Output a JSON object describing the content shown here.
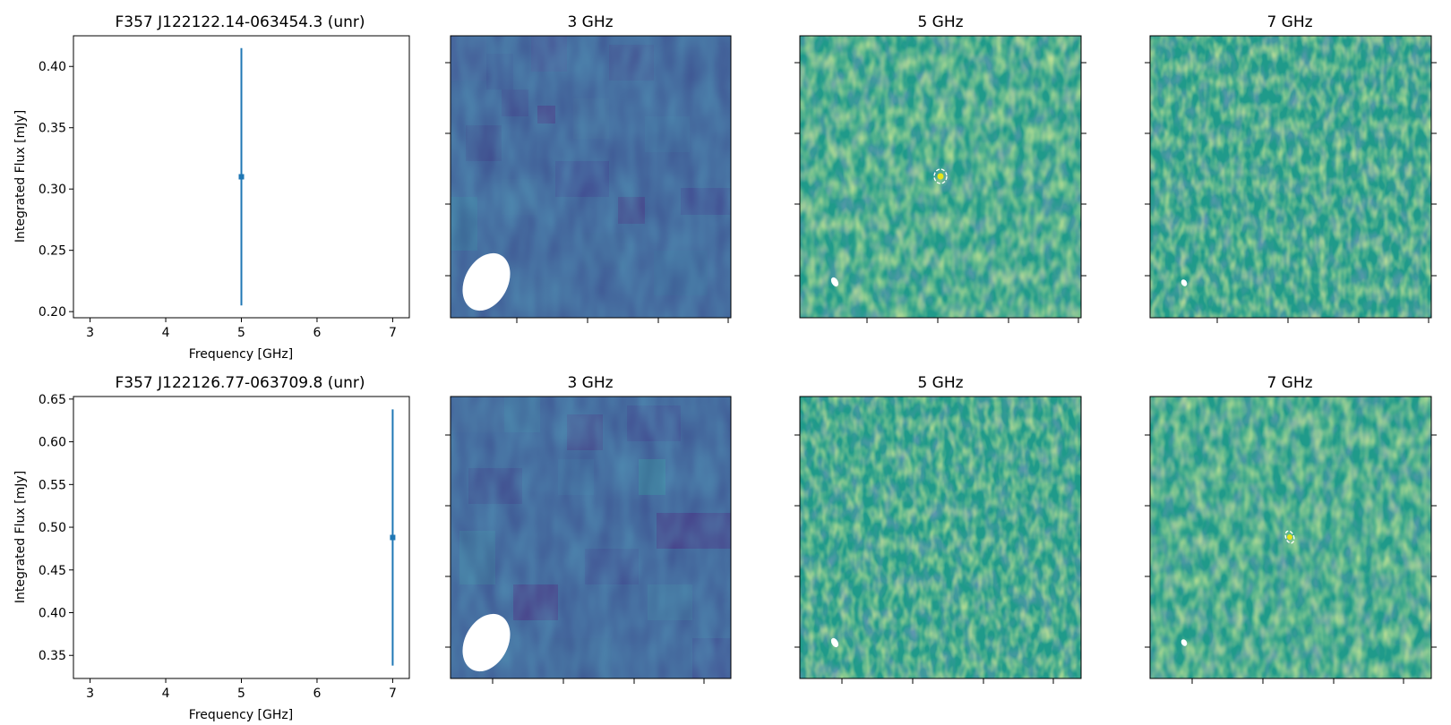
{
  "figure": {
    "rows": [
      {
        "sed": {
          "title": "F357 J122122.14-063454.3 (unr)",
          "xlabel": "Frequency [GHz]",
          "ylabel": "Integrated Flux [mJy]"
        },
        "panels": [
          {
            "title": "3 GHz"
          },
          {
            "title": "5 GHz"
          },
          {
            "title": "7 GHz"
          }
        ]
      },
      {
        "sed": {
          "title": "F357 J122126.77-063709.8 (unr)",
          "xlabel": "Frequency [GHz]",
          "ylabel": "Integrated Flux [mJy]"
        },
        "panels": [
          {
            "title": "3 GHz"
          },
          {
            "title": "5 GHz"
          },
          {
            "title": "7 GHz"
          }
        ]
      }
    ]
  },
  "chart_data": [
    {
      "type": "scatter",
      "title": "F357 J122122.14-063454.3 (unr)",
      "xlabel": "Frequency [GHz]",
      "ylabel": "Integrated Flux [mJy]",
      "xlim": [
        2.78,
        7.22
      ],
      "ylim": [
        0.195,
        0.425
      ],
      "xticks": [
        3,
        4,
        5,
        6,
        7
      ],
      "yticks": [
        0.2,
        0.25,
        0.3,
        0.35,
        0.4
      ],
      "ytick_labels": [
        "0.20",
        "0.25",
        "0.30",
        "0.35",
        "0.40"
      ],
      "points": [
        {
          "x": 5,
          "y": 0.31,
          "yerr_low": 0.205,
          "yerr_high": 0.415
        }
      ],
      "color": "#1f77b4"
    },
    {
      "type": "scatter",
      "title": "F357 J122126.77-063709.8 (unr)",
      "xlabel": "Frequency [GHz]",
      "ylabel": "Integrated Flux [mJy]",
      "xlim": [
        2.78,
        7.22
      ],
      "ylim": [
        0.323,
        0.653
      ],
      "xticks": [
        3,
        4,
        5,
        6,
        7
      ],
      "yticks": [
        0.35,
        0.4,
        0.45,
        0.5,
        0.55,
        0.6,
        0.65
      ],
      "ytick_labels": [
        "0.35",
        "0.40",
        "0.45",
        "0.50",
        "0.55",
        "0.60",
        "0.65"
      ],
      "points": [
        {
          "x": 7,
          "y": 0.488,
          "yerr_low": 0.338,
          "yerr_high": 0.638
        }
      ],
      "color": "#1f77b4"
    }
  ]
}
